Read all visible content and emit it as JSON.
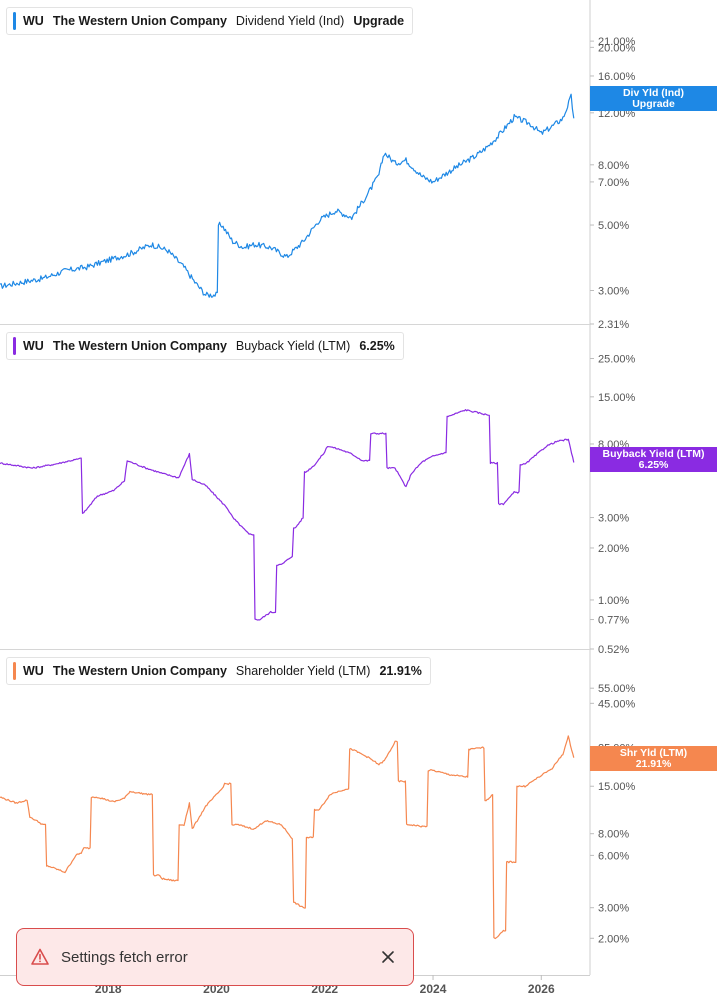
{
  "toast": {
    "message": "Settings fetch error"
  },
  "colors": {
    "dividend": "#1e88e5",
    "buyback": "#8a2be2",
    "shareholder": "#f5874f",
    "toast_border": "#d94c4c",
    "toast_bg": "#fde8e8"
  },
  "x_axis": {
    "ticks": [
      "2018",
      "2020",
      "2022",
      "2024",
      "2026"
    ]
  },
  "chart_data": [
    {
      "type": "line",
      "scale": "log",
      "legend": {
        "ticker": "WU",
        "company": "The Western Union Company",
        "metric": "Dividend Yield (Ind)",
        "value": "Upgrade"
      },
      "tag": {
        "label": "Div Yld (Ind)",
        "value": "Upgrade"
      },
      "y_ticks": [
        "21.00%",
        "20.00%",
        "16.00%",
        "12.00%",
        "8.00%",
        "7.00%",
        "5.00%",
        "3.00%",
        "2.31%"
      ],
      "y_tick_values": [
        21,
        20,
        16,
        12,
        8,
        7,
        5,
        3,
        2.31
      ],
      "ylim": [
        2.31,
        24
      ],
      "series": [
        {
          "x": [
            2016.0,
            2016.4,
            2016.8,
            2017.2,
            2017.6,
            2018.0,
            2018.4,
            2018.8,
            2019.1,
            2019.4,
            2019.6,
            2019.8,
            2019.95,
            2020.1,
            2020.3,
            2020.5,
            2020.7,
            2021.0,
            2021.3,
            2021.6,
            2021.9,
            2022.2,
            2022.5,
            2022.8,
            2023.0,
            2023.1,
            2023.3,
            2023.5,
            2023.8,
            2024.0,
            2024.2,
            2024.5,
            2024.8,
            2025.0,
            2025.2,
            2025.5,
            2025.8,
            2026.0,
            2026.2,
            2026.4,
            2026.55,
            2026.6
          ],
          "y": [
            3.1,
            3.2,
            3.3,
            3.5,
            3.6,
            3.8,
            4.0,
            4.3,
            4.1,
            3.6,
            3.2,
            2.9,
            2.9,
            5.0,
            4.4,
            4.2,
            4.3,
            4.2,
            3.9,
            4.4,
            5.2,
            5.6,
            5.3,
            6.4,
            7.4,
            8.8,
            8.1,
            8.3,
            7.3,
            7.0,
            7.4,
            8.0,
            8.6,
            9.2,
            10.0,
            11.6,
            11.0,
            10.2,
            10.8,
            11.5,
            13.6,
            11.5
          ]
        }
      ]
    },
    {
      "type": "line",
      "scale": "log",
      "legend": {
        "ticker": "WU",
        "company": "The Western Union Company",
        "metric": "Buyback Yield (LTM)",
        "value": "6.25%"
      },
      "tag": {
        "label": "Buyback Yield (LTM)",
        "value": "6.25%"
      },
      "y_ticks": [
        "25.00%",
        "15.00%",
        "8.00%",
        "3.00%",
        "2.00%",
        "1.00%",
        "0.77%",
        "0.52%"
      ],
      "y_tick_values": [
        25,
        15,
        8,
        3,
        2,
        1,
        0.77,
        0.52
      ],
      "ylim": [
        0.52,
        32
      ],
      "series": [
        {
          "x": [
            2016.0,
            2016.3,
            2016.6,
            2017.0,
            2017.3,
            2017.5,
            2017.55,
            2017.8,
            2018.1,
            2018.3,
            2018.35,
            2018.7,
            2019.0,
            2019.3,
            2019.5,
            2019.55,
            2019.8,
            2020.2,
            2020.3,
            2020.6,
            2020.8,
            2021.0,
            2021.2,
            2021.4,
            2021.45,
            2021.6,
            2021.65,
            2021.8,
            2022.0,
            2022.05,
            2022.3,
            2022.5,
            2022.7,
            2023.0,
            2023.3,
            2023.5,
            2023.6,
            2023.8,
            2024.0,
            2024.2,
            2024.3,
            2024.6,
            2024.9,
            2025.0,
            2025.1,
            2025.3,
            2025.5,
            2025.7,
            2025.9,
            2026.1,
            2026.3,
            2026.5,
            2026.6
          ],
          "y": [
            6.2,
            6.0,
            5.8,
            6.1,
            6.4,
            6.6,
            3.2,
            4.0,
            4.3,
            4.9,
            6.4,
            5.8,
            5.4,
            5.1,
            7.0,
            5.0,
            4.6,
            3.4,
            3.0,
            2.4,
            0.77,
            0.85,
            1.6,
            1.8,
            2.6,
            3.0,
            5.5,
            6.0,
            7.2,
            7.8,
            7.4,
            7.0,
            6.4,
            9.2,
            5.8,
            4.5,
            5.4,
            6.3,
            6.8,
            7.1,
            11.6,
            12.6,
            12.0,
            11.8,
            6.2,
            3.6,
            4.2,
            6.1,
            6.9,
            7.8,
            8.3,
            8.5,
            6.25
          ]
        }
      ]
    },
    {
      "type": "line",
      "scale": "log",
      "legend": {
        "ticker": "WU",
        "company": "The Western Union Company",
        "metric": "Shareholder Yield (LTM)",
        "value": "21.91%"
      },
      "tag": {
        "label": "Shr Yld (LTM)",
        "value": "21.91%"
      },
      "y_ticks": [
        "55.00%",
        "45.00%",
        "25.00%",
        "15.00%",
        "8.00%",
        "6.00%",
        "3.00%",
        "2.00%"
      ],
      "y_tick_values": [
        55,
        45,
        25,
        15,
        8,
        6,
        3,
        2
      ],
      "ylim": [
        1.5,
        70
      ],
      "series": [
        {
          "x": [
            2016.0,
            2016.3,
            2016.5,
            2016.55,
            2016.8,
            2016.9,
            2017.2,
            2017.4,
            2017.5,
            2017.55,
            2017.8,
            2018.1,
            2018.3,
            2018.4,
            2018.7,
            2018.95,
            2019.0,
            2019.2,
            2019.4,
            2019.5,
            2019.55,
            2019.8,
            2020.1,
            2020.15,
            2020.4,
            2020.7,
            2020.9,
            2021.2,
            2021.4,
            2021.45,
            2021.6,
            2021.7,
            2021.9,
            2022.1,
            2022.4,
            2022.5,
            2022.8,
            2023.0,
            2023.1,
            2023.3,
            2023.4,
            2023.6,
            2023.8,
            2024.0,
            2024.3,
            2024.6,
            2024.7,
            2024.9,
            2025.0,
            2025.1,
            2025.15,
            2025.3,
            2025.4,
            2025.7,
            2025.9,
            2026.2,
            2026.4,
            2026.5,
            2026.6
          ],
          "y": [
            13.0,
            12.0,
            12.5,
            10.0,
            9.0,
            5.2,
            4.8,
            6.0,
            6.2,
            6.6,
            13.0,
            12.2,
            12.8,
            14.0,
            13.5,
            4.6,
            4.4,
            4.3,
            9.0,
            12.0,
            8.5,
            11.5,
            14.5,
            15.5,
            9.0,
            8.5,
            9.5,
            9.0,
            7.5,
            3.2,
            3.0,
            7.6,
            11.0,
            13.5,
            14.5,
            24.5,
            22.0,
            20.0,
            21.0,
            27.0,
            16.0,
            9.0,
            8.8,
            18.5,
            17.5,
            17.0,
            24.5,
            25.0,
            12.5,
            13.5,
            2.0,
            2.2,
            5.5,
            15.0,
            16.5,
            19.0,
            23.0,
            29.0,
            21.91
          ]
        }
      ]
    }
  ]
}
